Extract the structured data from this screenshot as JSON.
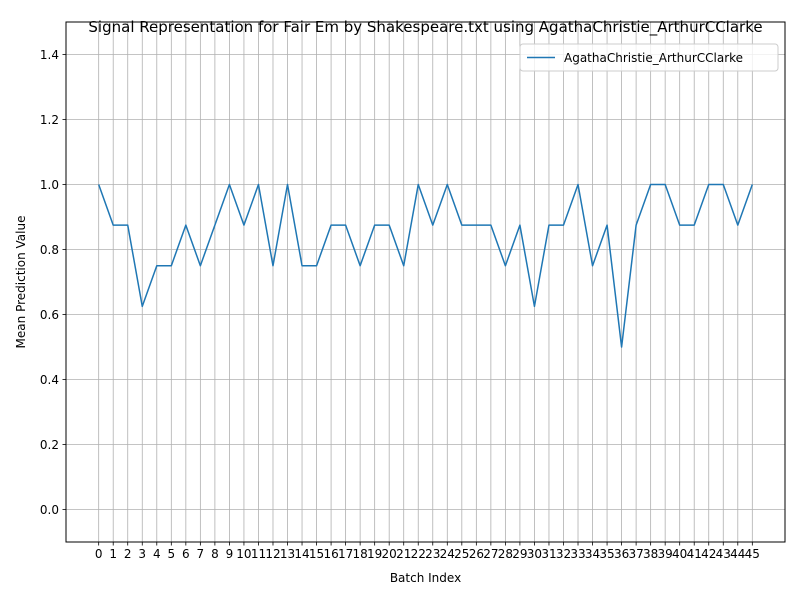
{
  "chart_data": {
    "type": "line",
    "title": "Signal Representation for Fair Em by Shakespeare.txt using AgathaChristie_ArthurCClarke",
    "xlabel": "Batch Index",
    "ylabel": "Mean Prediction Value",
    "xlim": [
      -2.25,
      47.25
    ],
    "ylim": [
      -0.1,
      1.5
    ],
    "yticks": [
      0.0,
      0.2,
      0.4,
      0.6,
      0.8,
      1.0,
      1.2,
      1.4
    ],
    "ytick_labels": [
      "0.0",
      "0.2",
      "0.4",
      "0.6",
      "0.8",
      "1.0",
      "1.2",
      "1.4"
    ],
    "grid": true,
    "legend_position": "upper right",
    "series": [
      {
        "name": "AgathaChristie_ArthurCClarke",
        "color": "#1f77b4",
        "x": [
          0,
          1,
          2,
          3,
          4,
          5,
          6,
          7,
          8,
          9,
          10,
          11,
          12,
          13,
          14,
          15,
          16,
          17,
          18,
          19,
          20,
          21,
          22,
          23,
          24,
          25,
          26,
          27,
          28,
          29,
          30,
          31,
          32,
          33,
          34,
          35,
          36,
          37,
          38,
          39,
          40,
          41,
          42,
          43,
          44,
          45
        ],
        "values": [
          1.0,
          0.875,
          0.875,
          0.625,
          0.75,
          0.75,
          0.875,
          0.75,
          0.875,
          1.0,
          0.875,
          1.0,
          0.75,
          1.0,
          0.75,
          0.75,
          0.875,
          0.875,
          0.75,
          0.875,
          0.875,
          0.75,
          1.0,
          0.875,
          1.0,
          0.875,
          0.875,
          0.875,
          0.75,
          0.875,
          0.625,
          0.875,
          0.875,
          1.0,
          0.75,
          0.875,
          0.5,
          0.875,
          1.0,
          1.0,
          0.875,
          0.875,
          1.0,
          1.0,
          0.875,
          1.0
        ]
      }
    ]
  }
}
